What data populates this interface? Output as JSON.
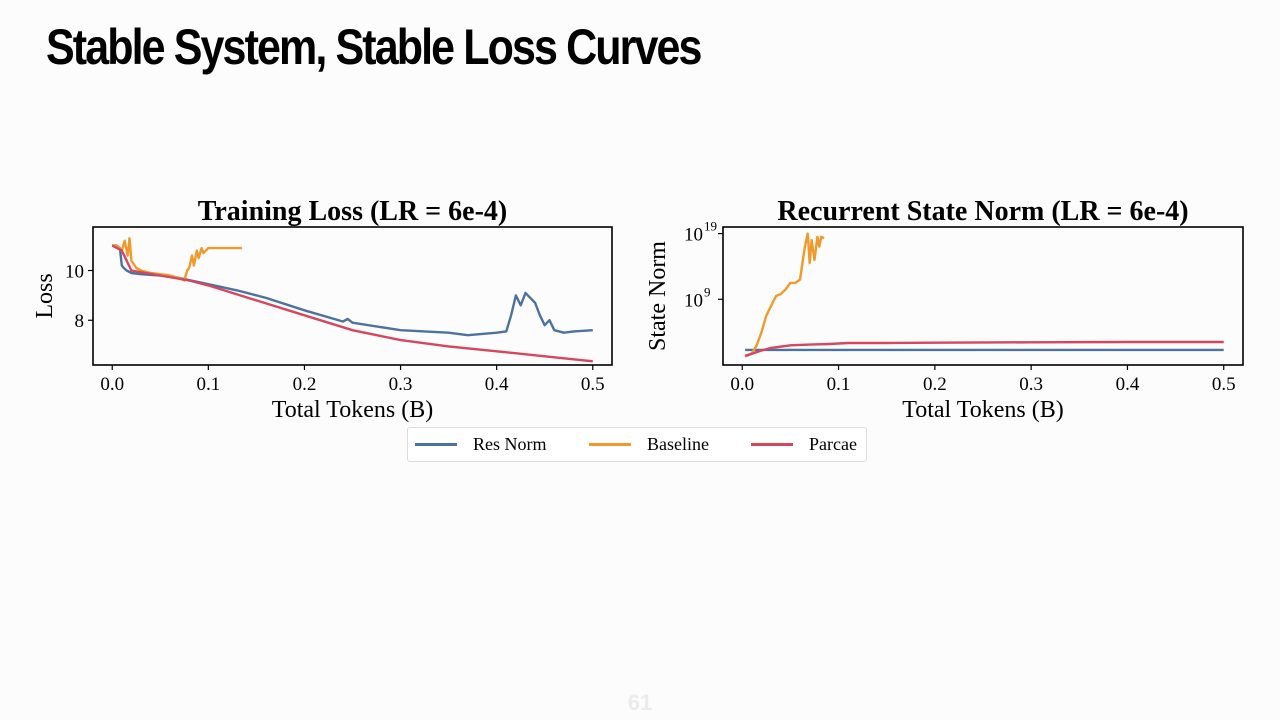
{
  "slide": {
    "title": "Stable System, Stable Loss Curves",
    "page_number": "61"
  },
  "legend": {
    "entries": [
      {
        "name": "Res Norm",
        "color": "#4c72a0"
      },
      {
        "name": "Baseline",
        "color": "#ef9a2a"
      },
      {
        "name": "Parcae",
        "color": "#d5475e"
      }
    ]
  },
  "chart_data": [
    {
      "type": "line",
      "title": "Training Loss (LR = 6e-4)",
      "xlabel": "Total Tokens (B)",
      "ylabel": "Loss",
      "xlim": [
        -0.02,
        0.52
      ],
      "ylim": [
        6.2,
        11.75
      ],
      "xticks": [
        0.0,
        0.1,
        0.2,
        0.3,
        0.4,
        0.5
      ],
      "xtick_labels": [
        "0.0",
        "0.1",
        "0.2",
        "0.3",
        "0.4",
        "0.5"
      ],
      "yticks": [
        8,
        10
      ],
      "ytick_labels": [
        "8",
        "10"
      ],
      "grid": false,
      "series": [
        {
          "name": "Res Norm",
          "color": "#4c72a0",
          "x": [
            0.0,
            0.005,
            0.008,
            0.01,
            0.012,
            0.015,
            0.02,
            0.03,
            0.05,
            0.07,
            0.1,
            0.13,
            0.16,
            0.2,
            0.24,
            0.245,
            0.25,
            0.3,
            0.35,
            0.37,
            0.4,
            0.41,
            0.415,
            0.42,
            0.425,
            0.43,
            0.435,
            0.44,
            0.445,
            0.45,
            0.455,
            0.46,
            0.47,
            0.48,
            0.5
          ],
          "y": [
            11.0,
            11.0,
            10.9,
            10.2,
            10.1,
            10.0,
            9.9,
            9.85,
            9.8,
            9.7,
            9.45,
            9.2,
            8.9,
            8.4,
            7.95,
            8.05,
            7.9,
            7.6,
            7.5,
            7.4,
            7.5,
            7.55,
            8.2,
            9.0,
            8.6,
            9.1,
            8.9,
            8.7,
            8.2,
            7.8,
            8.0,
            7.6,
            7.5,
            7.55,
            7.6
          ]
        },
        {
          "name": "Baseline",
          "color": "#ef9a2a",
          "x": [
            0.0,
            0.005,
            0.01,
            0.013,
            0.016,
            0.018,
            0.02,
            0.025,
            0.03,
            0.04,
            0.05,
            0.06,
            0.07,
            0.075,
            0.078,
            0.08,
            0.083,
            0.085,
            0.088,
            0.09,
            0.093,
            0.095,
            0.1,
            0.12,
            0.135
          ],
          "y": [
            11.0,
            11.0,
            10.8,
            11.2,
            10.6,
            11.3,
            10.4,
            10.1,
            10.0,
            9.9,
            9.85,
            9.8,
            9.7,
            9.6,
            10.0,
            10.1,
            10.6,
            10.2,
            10.8,
            10.5,
            10.9,
            10.7,
            10.9,
            10.9,
            10.9
          ]
        },
        {
          "name": "Parcae",
          "color": "#d5475e",
          "x": [
            0.0,
            0.005,
            0.01,
            0.02,
            0.05,
            0.08,
            0.1,
            0.15,
            0.2,
            0.25,
            0.3,
            0.35,
            0.4,
            0.45,
            0.5
          ],
          "y": [
            11.0,
            10.9,
            10.8,
            10.0,
            9.8,
            9.6,
            9.4,
            8.8,
            8.2,
            7.6,
            7.2,
            6.95,
            6.75,
            6.55,
            6.35
          ]
        }
      ]
    },
    {
      "type": "line",
      "title": "Recurrent State Norm (LR = 6e-4)",
      "xlabel": "Total Tokens (B)",
      "ylabel": "State Norm",
      "yscale": "log",
      "xlim": [
        -0.02,
        0.52
      ],
      "ylim_log10": [
        -1,
        20
      ],
      "xticks": [
        0.0,
        0.1,
        0.2,
        0.3,
        0.4,
        0.5
      ],
      "xtick_labels": [
        "0.0",
        "0.1",
        "0.2",
        "0.3",
        "0.4",
        "0.5"
      ],
      "yticks_log10": [
        9,
        19
      ],
      "ytick_labels": [
        {
          "base": "10",
          "exp": "9"
        },
        {
          "base": "10",
          "exp": "19"
        }
      ],
      "grid": false,
      "series": [
        {
          "name": "Res Norm",
          "color": "#4c72a0",
          "x": [
            0.003,
            0.5
          ],
          "y_log10": [
            1.3,
            1.3
          ]
        },
        {
          "name": "Baseline",
          "color": "#ef9a2a",
          "x": [
            0.003,
            0.01,
            0.015,
            0.02,
            0.025,
            0.03,
            0.035,
            0.04,
            0.045,
            0.05,
            0.055,
            0.06,
            0.065,
            0.068,
            0.07,
            0.072,
            0.075,
            0.078,
            0.08,
            0.082,
            0.085
          ],
          "y_log10": [
            0.3,
            0.8,
            2.0,
            4.0,
            6.5,
            8.0,
            9.5,
            9.8,
            10.5,
            11.5,
            11.5,
            12.0,
            17.0,
            19.0,
            14.5,
            18.0,
            15.0,
            18.5,
            17.0,
            18.5,
            18.3
          ]
        },
        {
          "name": "Parcae",
          "color": "#d5475e",
          "x": [
            0.003,
            0.01,
            0.02,
            0.03,
            0.05,
            0.07,
            0.09,
            0.11,
            0.15,
            0.2,
            0.3,
            0.4,
            0.5
          ],
          "y_log10": [
            0.4,
            0.7,
            1.2,
            1.6,
            2.0,
            2.1,
            2.2,
            2.35,
            2.35,
            2.4,
            2.45,
            2.5,
            2.5
          ]
        }
      ]
    }
  ]
}
